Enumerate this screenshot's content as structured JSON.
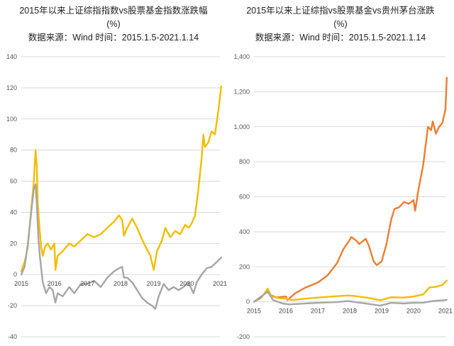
{
  "chart_data": [
    {
      "type": "line",
      "title": "2015年以来上证综指指数vs股票基金指数涨跌幅",
      "unit": "(%)",
      "subtitle": "数据来源：Wind 时间：2015.1.5-2021.1.14",
      "ylim": [
        -40,
        140
      ],
      "yticks": [
        -40,
        -20,
        0,
        20,
        40,
        60,
        80,
        100,
        120,
        140
      ],
      "xticks": [
        "2015",
        "2016",
        "2017",
        "2018",
        "2019",
        "2020",
        "2021"
      ],
      "grid": true,
      "series": [
        {
          "color": "#F4BC00",
          "x": [
            2015.0,
            2015.1,
            2015.2,
            2015.3,
            2015.38,
            2015.43,
            2015.47,
            2015.5,
            2015.55,
            2015.6,
            2015.65,
            2015.72,
            2015.8,
            2015.9,
            2016.0,
            2016.03,
            2016.1,
            2016.25,
            2016.45,
            2016.6,
            2016.8,
            2017.0,
            2017.2,
            2017.4,
            2017.6,
            2017.8,
            2017.95,
            2018.05,
            2018.1,
            2018.2,
            2018.35,
            2018.5,
            2018.6,
            2018.75,
            2018.9,
            2019.0,
            2019.1,
            2019.25,
            2019.35,
            2019.5,
            2019.65,
            2019.8,
            2019.95,
            2020.05,
            2020.15,
            2020.25,
            2020.35,
            2020.45,
            2020.5,
            2020.55,
            2020.65,
            2020.75,
            2020.85,
            2020.95,
            2021.04
          ],
          "values": [
            2,
            8,
            18,
            42,
            60,
            80,
            70,
            45,
            30,
            18,
            12,
            18,
            20,
            16,
            20,
            3,
            12,
            15,
            20,
            18,
            22,
            26,
            24,
            26,
            30,
            34,
            38,
            35,
            25,
            30,
            36,
            30,
            25,
            18,
            12,
            3,
            15,
            22,
            30,
            24,
            28,
            26,
            32,
            30,
            33,
            38,
            55,
            75,
            90,
            82,
            85,
            92,
            90,
            105,
            121
          ]
        },
        {
          "color": "#A6A6A6",
          "x": [
            2015.0,
            2015.1,
            2015.2,
            2015.3,
            2015.38,
            2015.43,
            2015.47,
            2015.52,
            2015.57,
            2015.65,
            2015.75,
            2015.85,
            2015.95,
            2016.03,
            2016.1,
            2016.25,
            2016.45,
            2016.6,
            2016.8,
            2017.0,
            2017.2,
            2017.4,
            2017.6,
            2017.8,
            2017.95,
            2018.05,
            2018.1,
            2018.2,
            2018.35,
            2018.5,
            2018.65,
            2018.8,
            2018.95,
            2019.05,
            2019.15,
            2019.3,
            2019.45,
            2019.6,
            2019.75,
            2019.9,
            2020.05,
            2020.2,
            2020.3,
            2020.45,
            2020.6,
            2020.75,
            2020.9,
            2021.04
          ],
          "values": [
            0,
            5,
            20,
            40,
            55,
            58,
            45,
            22,
            10,
            -5,
            -12,
            -8,
            -10,
            -18,
            -12,
            -14,
            -8,
            -12,
            -6,
            -6,
            -4,
            -8,
            -2,
            2,
            4,
            5,
            -2,
            -2,
            -5,
            -10,
            -15,
            -18,
            -20,
            -22,
            -14,
            -6,
            -10,
            -8,
            -10,
            -8,
            -5,
            -12,
            -5,
            0,
            4,
            5,
            8,
            11
          ]
        }
      ]
    },
    {
      "type": "line",
      "title": "2015年以来上证综指vs股票基金vs贵州茅台涨跌",
      "unit": "(%)",
      "subtitle": "数据来源：Wind 时间：2015.1.5-2021.1.14",
      "ylim": [
        -200,
        1400
      ],
      "yticks": [
        -200,
        0,
        200,
        400,
        600,
        800,
        "1,000",
        "1,200",
        "1,400"
      ],
      "xticks": [
        "2015",
        "2016",
        "2017",
        "2018",
        "2019",
        "2020",
        "2021"
      ],
      "grid": true,
      "series": [
        {
          "color": "#ED7D31",
          "x": [
            2015.0,
            2015.2,
            2015.4,
            2015.5,
            2015.7,
            2016.0,
            2016.05,
            2016.3,
            2016.6,
            2017.0,
            2017.3,
            2017.6,
            2017.8,
            2017.95,
            2018.05,
            2018.2,
            2018.3,
            2018.5,
            2018.6,
            2018.75,
            2018.85,
            2019.0,
            2019.15,
            2019.3,
            2019.4,
            2019.55,
            2019.7,
            2019.85,
            2020.0,
            2020.05,
            2020.15,
            2020.3,
            2020.45,
            2020.55,
            2020.6,
            2020.7,
            2020.8,
            2020.9,
            2021.0,
            2021.04
          ],
          "values": [
            0,
            20,
            60,
            40,
            25,
            30,
            10,
            50,
            80,
            110,
            150,
            220,
            300,
            340,
            370,
            350,
            330,
            360,
            320,
            230,
            210,
            230,
            330,
            470,
            530,
            540,
            570,
            560,
            580,
            520,
            640,
            780,
            1000,
            980,
            1030,
            960,
            1000,
            1020,
            1100,
            1280
          ]
        },
        {
          "color": "#F4BC00",
          "x": [
            2015.0,
            2015.3,
            2015.43,
            2015.55,
            2015.8,
            2016.0,
            2016.2,
            2016.6,
            2017.0,
            2017.6,
            2017.95,
            2018.2,
            2018.6,
            2018.95,
            2019.3,
            2019.7,
            2020.0,
            2020.3,
            2020.5,
            2020.7,
            2020.9,
            2021.04
          ],
          "values": [
            0,
            40,
            75,
            30,
            20,
            18,
            10,
            18,
            24,
            32,
            36,
            32,
            22,
            8,
            26,
            24,
            30,
            42,
            82,
            86,
            95,
            121
          ]
        },
        {
          "color": "#A6A6A6",
          "x": [
            2015.0,
            2015.3,
            2015.43,
            2015.6,
            2015.9,
            2016.1,
            2016.6,
            2017.0,
            2017.6,
            2017.95,
            2018.3,
            2018.7,
            2018.95,
            2019.3,
            2019.7,
            2020.0,
            2020.3,
            2020.6,
            2020.9,
            2021.04
          ],
          "values": [
            0,
            40,
            58,
            10,
            -10,
            -15,
            -10,
            -6,
            -2,
            4,
            -5,
            -15,
            -22,
            -6,
            -10,
            -6,
            -5,
            4,
            8,
            11
          ]
        }
      ]
    }
  ]
}
